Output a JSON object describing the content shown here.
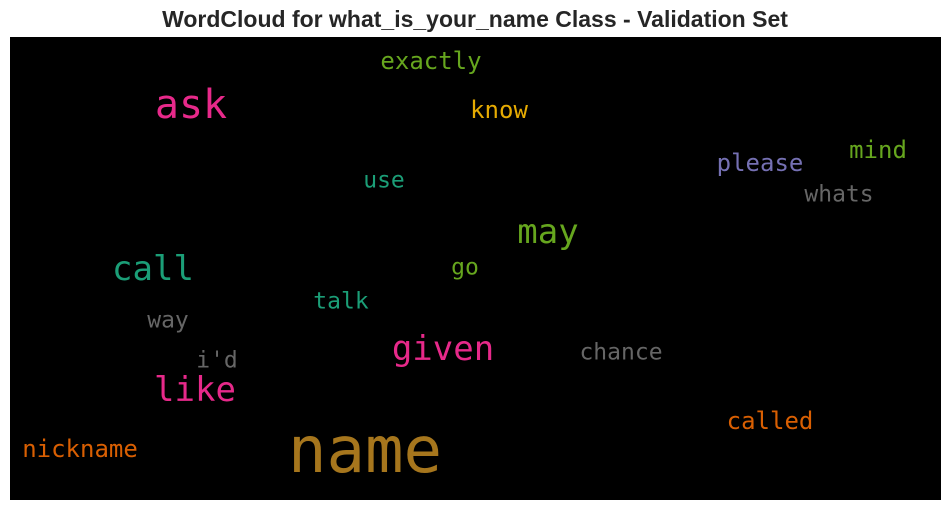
{
  "chart_data": {
    "type": "wordcloud",
    "title": "WordCloud for what_is_your_name Class - Validation Set",
    "background": "#000000",
    "words": [
      {
        "text": "exactly",
        "color": "#66a61e"
      },
      {
        "text": "ask",
        "color": "#e7298a"
      },
      {
        "text": "know",
        "color": "#e6ab02"
      },
      {
        "text": "mind",
        "color": "#66a61e"
      },
      {
        "text": "please",
        "color": "#7570b3"
      },
      {
        "text": "use",
        "color": "#1b9e77"
      },
      {
        "text": "whats",
        "color": "#666666"
      },
      {
        "text": "may",
        "color": "#66a61e"
      },
      {
        "text": "call",
        "color": "#1b9e77"
      },
      {
        "text": "go",
        "color": "#66a61e"
      },
      {
        "text": "talk",
        "color": "#1b9e77"
      },
      {
        "text": "way",
        "color": "#666666"
      },
      {
        "text": "given",
        "color": "#e7298a"
      },
      {
        "text": "chance",
        "color": "#666666"
      },
      {
        "text": "i'd",
        "color": "#666666"
      },
      {
        "text": "like",
        "color": "#e7298a"
      },
      {
        "text": "called",
        "color": "#d95f02"
      },
      {
        "text": "name",
        "color": "#a6761d"
      },
      {
        "text": "nickname",
        "color": "#d95f02"
      }
    ]
  }
}
